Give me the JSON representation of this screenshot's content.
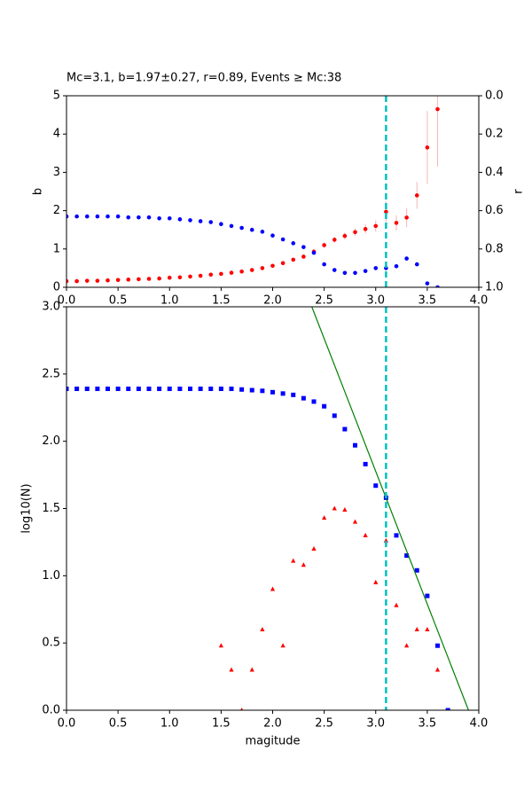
{
  "chart_data": [
    {
      "type": "scatter",
      "title": "Mc=3.1, b=1.97±0.27, r=0.89, Events ≥ Mc:38",
      "ylabel": "b",
      "y2label": "r",
      "xlim": [
        0,
        4
      ],
      "ylim": [
        0,
        5
      ],
      "y2lim": [
        1,
        0
      ],
      "xticks": [
        {
          "value": 0,
          "label": "0.0"
        },
        0.5,
        {
          "value": 1,
          "label": "1.0"
        },
        1.5,
        {
          "value": 2,
          "label": "2.0"
        },
        2.5,
        {
          "value": 3,
          "label": "3.0"
        },
        3.5,
        {
          "value": 4,
          "label": "4.0"
        }
      ],
      "yticks": [
        0,
        1,
        2,
        3,
        4,
        5
      ],
      "y2ticks": [
        {
          "value": 0,
          "label": "0.0"
        },
        0.2,
        0.4,
        0.6,
        0.8,
        {
          "value": 1,
          "label": "1.0"
        }
      ],
      "vline": 3.1,
      "vline_color": "#00c0c0",
      "series": [
        {
          "marker": "circle",
          "color": "#ff0000",
          "error_color": "#f6b6b6",
          "x": [
            0,
            0.1,
            0.2,
            0.3,
            0.4,
            0.5,
            0.6,
            0.7,
            0.8,
            0.9,
            1,
            1.1,
            1.2,
            1.3,
            1.4,
            1.5,
            1.6,
            1.7,
            1.8,
            1.9,
            2,
            2.1,
            2.2,
            2.3,
            2.4,
            2.5,
            2.6,
            2.7,
            2.8,
            2.9,
            3,
            3.1,
            3.2,
            3.3,
            3.4,
            3.5,
            3.6
          ],
          "values": [
            0.16,
            0.16,
            0.17,
            0.17,
            0.18,
            0.19,
            0.2,
            0.21,
            0.22,
            0.23,
            0.25,
            0.26,
            0.28,
            0.3,
            0.33,
            0.35,
            0.38,
            0.41,
            0.45,
            0.5,
            0.56,
            0.63,
            0.72,
            0.8,
            0.93,
            1.1,
            1.24,
            1.34,
            1.44,
            1.52,
            1.6,
            1.97,
            1.68,
            1.82,
            2.4,
            3.65,
            4.65
          ],
          "errors": [
            0.02,
            0.02,
            0.02,
            0.02,
            0.02,
            0.02,
            0.02,
            0.02,
            0.02,
            0.02,
            0.02,
            0.02,
            0.02,
            0.02,
            0.02,
            0.02,
            0.02,
            0.02,
            0.03,
            0.03,
            0.03,
            0.04,
            0.04,
            0.05,
            0.06,
            0.07,
            0.08,
            0.09,
            0.1,
            0.12,
            0.15,
            0.27,
            0.2,
            0.25,
            0.35,
            0.95,
            1.5
          ]
        },
        {
          "marker": "circle",
          "color": "#0000ff",
          "axis": "y2",
          "x": [
            0,
            0.1,
            0.2,
            0.3,
            0.4,
            0.5,
            0.6,
            0.7,
            0.8,
            0.9,
            1,
            1.1,
            1.2,
            1.3,
            1.4,
            1.5,
            1.6,
            1.7,
            1.8,
            1.9,
            2,
            2.1,
            2.2,
            2.3,
            2.4,
            2.5,
            2.6,
            2.7,
            2.8,
            2.9,
            3,
            3.1,
            3.2,
            3.3,
            3.4,
            3.5,
            3.6
          ],
          "values": [
            0.63,
            0.63,
            0.63,
            0.63,
            0.63,
            0.63,
            0.635,
            0.635,
            0.635,
            0.64,
            0.64,
            0.645,
            0.65,
            0.655,
            0.66,
            0.67,
            0.68,
            0.69,
            0.7,
            0.71,
            0.73,
            0.75,
            0.77,
            0.79,
            0.82,
            0.88,
            0.91,
            0.925,
            0.925,
            0.915,
            0.9,
            0.9,
            0.89,
            0.85,
            0.88,
            0.98,
            1.0
          ]
        }
      ]
    },
    {
      "type": "scatter",
      "xlabel": "magitude",
      "ylabel": "log10(N)",
      "xlim": [
        0,
        4
      ],
      "ylim": [
        0,
        3
      ],
      "xticks": [
        {
          "value": 0,
          "label": "0.0"
        },
        0.5,
        {
          "value": 1,
          "label": "1.0"
        },
        1.5,
        {
          "value": 2,
          "label": "2.0"
        },
        2.5,
        {
          "value": 3,
          "label": "3.0"
        },
        3.5,
        {
          "value": 4,
          "label": "4.0"
        }
      ],
      "yticks": [
        {
          "value": 0,
          "label": "0.0"
        },
        0.5,
        {
          "value": 1,
          "label": "1.0"
        },
        1.5,
        {
          "value": 2,
          "label": "2.0"
        },
        2.5,
        {
          "value": 3,
          "label": "3.0"
        }
      ],
      "vline": 3.1,
      "vline_color": "#00c0c0",
      "series": [
        {
          "marker": "square",
          "color": "#0000ff",
          "x": [
            0,
            0.1,
            0.2,
            0.3,
            0.4,
            0.5,
            0.6,
            0.7,
            0.8,
            0.9,
            1,
            1.1,
            1.2,
            1.3,
            1.4,
            1.5,
            1.6,
            1.7,
            1.8,
            1.9,
            2,
            2.1,
            2.2,
            2.3,
            2.4,
            2.5,
            2.6,
            2.7,
            2.8,
            2.9,
            3,
            3.1,
            3.2,
            3.3,
            3.4,
            3.5,
            3.6,
            3.7
          ],
          "values": [
            2.39,
            2.39,
            2.39,
            2.39,
            2.39,
            2.39,
            2.39,
            2.39,
            2.39,
            2.39,
            2.39,
            2.39,
            2.39,
            2.39,
            2.39,
            2.39,
            2.39,
            2.385,
            2.38,
            2.375,
            2.365,
            2.355,
            2.345,
            2.32,
            2.295,
            2.26,
            2.19,
            2.09,
            1.97,
            1.83,
            1.67,
            1.58,
            1.3,
            1.15,
            1.04,
            0.85,
            0.48,
            0
          ]
        },
        {
          "marker": "triangle",
          "color": "#ff0000",
          "x": [
            1.5,
            1.6,
            1.7,
            1.8,
            1.9,
            2,
            2.1,
            2.2,
            2.3,
            2.4,
            2.5,
            2.6,
            2.7,
            2.8,
            2.9,
            3,
            3.1,
            3.2,
            3.3,
            3.4,
            3.5,
            3.6
          ],
          "values": [
            0.48,
            0.3,
            0,
            0.3,
            0.6,
            0.9,
            0.48,
            1.11,
            1.08,
            1.2,
            1.43,
            1.5,
            1.49,
            1.4,
            1.3,
            0.95,
            1.26,
            0.78,
            0.48,
            0.6,
            0.6,
            0.3
          ]
        },
        {
          "marker": "line",
          "color": "#008000",
          "x": [
            2.38,
            3.9
          ],
          "values": [
            3,
            0
          ]
        }
      ]
    }
  ]
}
